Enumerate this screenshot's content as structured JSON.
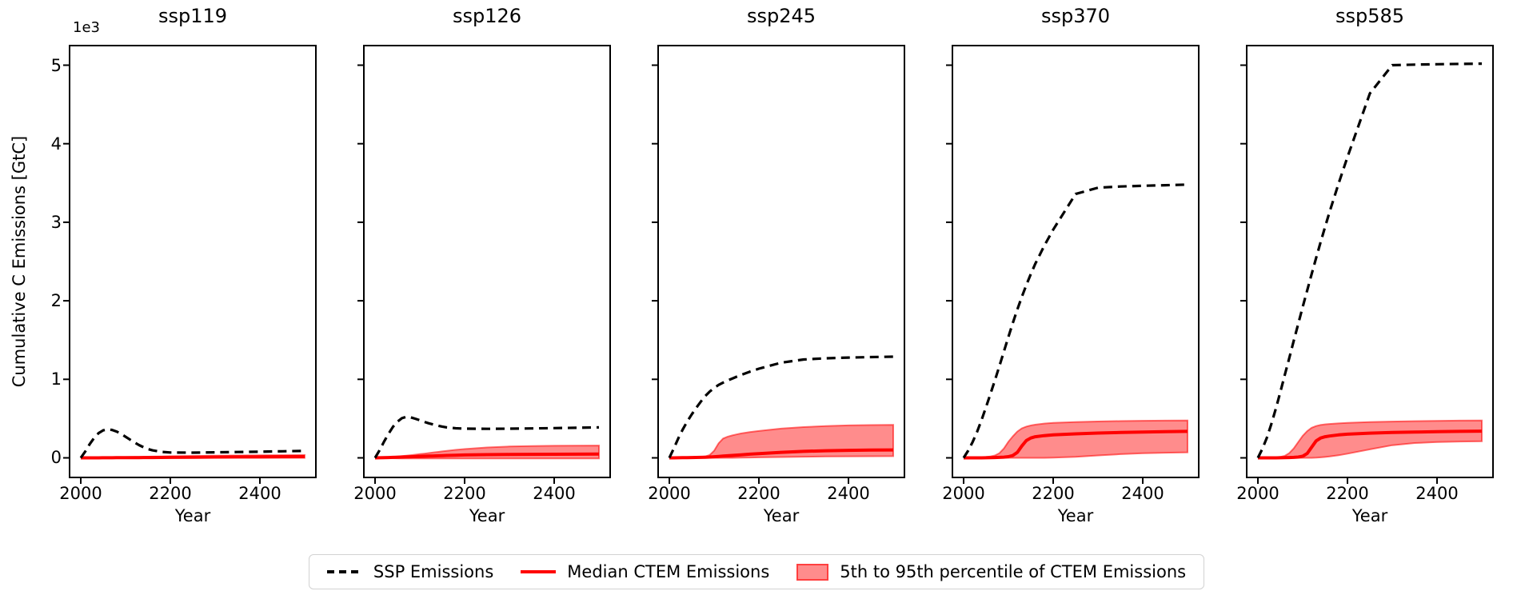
{
  "figure": {
    "ylabel": "Cumulative C Emissions [GtC]",
    "xlabel": "Year",
    "y_offset_label": "1e3"
  },
  "legend": {
    "items": [
      {
        "label": "SSP Emissions",
        "sample": "dashed-line"
      },
      {
        "label": "Median CTEM Emissions",
        "sample": "solid-line"
      },
      {
        "label": "5th to 95th percentile of CTEM Emissions",
        "sample": "patch"
      }
    ]
  },
  "chart_data": {
    "type": "line",
    "title": "",
    "xlabel": "Year",
    "ylabel": "Cumulative C Emissions [GtC]",
    "y_offset_label": "1e3",
    "xlim": [
      1975,
      2525
    ],
    "ylim": [
      -250,
      5250
    ],
    "xticks": [
      2000,
      2200,
      2400
    ],
    "yticks": {
      "values": [
        0,
        1000,
        2000,
        3000,
        4000,
        5000
      ],
      "labels": [
        "0",
        "1",
        "2",
        "3",
        "4",
        "5"
      ]
    },
    "grid": false,
    "legend_position": "bottom-center",
    "colors": {
      "ssp_line": "#000000",
      "median_line": "#ff0000",
      "band_fill": "rgba(255,0,0,0.45)",
      "band_edge": "rgba(255,0,0,0.55)",
      "legend_border": "#d2d2d2"
    },
    "series_meaning": {
      "ssp": "SSP Emissions (black dashed)",
      "median": "Median CTEM Emissions (red solid)",
      "p5_p95": "5th to 95th percentile of CTEM Emissions (red band)"
    },
    "x": [
      2000,
      2010,
      2020,
      2030,
      2040,
      2050,
      2060,
      2070,
      2080,
      2090,
      2100,
      2110,
      2120,
      2130,
      2140,
      2150,
      2160,
      2180,
      2200,
      2250,
      2300,
      2350,
      2400,
      2450,
      2500
    ],
    "subplots": [
      {
        "title": "ssp119",
        "ssp": [
          0,
          80,
          175,
          255,
          315,
          350,
          362,
          355,
          335,
          305,
          268,
          232,
          196,
          163,
          135,
          112,
          95,
          76,
          68,
          66,
          70,
          74,
          78,
          83,
          88
        ],
        "median": [
          0,
          0,
          0,
          0,
          0,
          1,
          1,
          1,
          2,
          2,
          2,
          3,
          3,
          3,
          4,
          4,
          4,
          5,
          6,
          8,
          10,
          12,
          13,
          15,
          16
        ],
        "p95": [
          0,
          1,
          2,
          3,
          4,
          5,
          6,
          7,
          8,
          9,
          10,
          11,
          12,
          13,
          14,
          15,
          16,
          18,
          20,
          24,
          27,
          30,
          32,
          34,
          35
        ],
        "p5": [
          0,
          0,
          0,
          0,
          0,
          0,
          0,
          0,
          0,
          0,
          0,
          0,
          0,
          0,
          0,
          0,
          0,
          0,
          0,
          0,
          0,
          0,
          0,
          0,
          0
        ]
      },
      {
        "title": "ssp126",
        "ssp": [
          0,
          95,
          205,
          305,
          395,
          460,
          505,
          522,
          515,
          498,
          478,
          458,
          440,
          424,
          410,
          398,
          388,
          376,
          371,
          369,
          371,
          374,
          378,
          383,
          388
        ],
        "median": [
          0,
          1,
          2,
          4,
          6,
          8,
          10,
          12,
          14,
          16,
          18,
          20,
          22,
          24,
          26,
          28,
          30,
          33,
          36,
          40,
          42,
          44,
          45,
          46,
          47
        ],
        "p95": [
          0,
          2,
          5,
          9,
          13,
          18,
          23,
          28,
          34,
          40,
          47,
          54,
          61,
          68,
          75,
          82,
          89,
          101,
          112,
          132,
          144,
          150,
          153,
          155,
          156
        ],
        "p5": [
          0,
          -2,
          -4,
          -5,
          -6,
          -7,
          -8,
          -8,
          -8,
          -8,
          -8,
          -8,
          -8,
          -8,
          -8,
          -8,
          -8,
          -8,
          -8,
          -8,
          -8,
          -8,
          -8,
          -8,
          -8
        ]
      },
      {
        "title": "ssp245",
        "ssp": [
          0,
          120,
          248,
          362,
          463,
          553,
          636,
          714,
          785,
          843,
          890,
          928,
          958,
          984,
          1008,
          1032,
          1055,
          1098,
          1135,
          1212,
          1252,
          1268,
          1277,
          1283,
          1288
        ],
        "median": [
          0,
          0,
          1,
          2,
          3,
          4,
          5,
          6,
          8,
          10,
          14,
          18,
          22,
          26,
          30,
          34,
          38,
          46,
          54,
          70,
          82,
          90,
          95,
          98,
          100
        ],
        "p95": [
          0,
          1,
          2,
          4,
          6,
          8,
          10,
          13,
          17,
          35,
          90,
          185,
          245,
          268,
          285,
          298,
          310,
          328,
          342,
          372,
          392,
          405,
          413,
          417,
          420
        ],
        "p5": [
          0,
          0,
          0,
          0,
          0,
          0,
          0,
          0,
          0,
          0,
          0,
          0,
          0,
          0,
          0,
          1,
          2,
          4,
          6,
          10,
          14,
          17,
          19,
          20,
          21
        ]
      },
      {
        "title": "ssp370",
        "ssp": [
          0,
          90,
          200,
          330,
          480,
          645,
          815,
          990,
          1170,
          1355,
          1540,
          1720,
          1890,
          2050,
          2200,
          2340,
          2470,
          2700,
          2905,
          3360,
          3440,
          3455,
          3465,
          3472,
          3480
        ],
        "median": [
          0,
          0,
          0,
          0,
          0,
          1,
          2,
          4,
          6,
          9,
          15,
          30,
          70,
          150,
          220,
          252,
          268,
          283,
          293,
          305,
          315,
          322,
          328,
          333,
          337
        ],
        "p95": [
          0,
          1,
          2,
          4,
          7,
          11,
          18,
          30,
          60,
          120,
          205,
          275,
          335,
          375,
          398,
          412,
          422,
          436,
          445,
          456,
          463,
          468,
          472,
          474,
          476
        ],
        "p5": [
          0,
          0,
          0,
          0,
          0,
          0,
          0,
          0,
          0,
          0,
          0,
          0,
          0,
          0,
          0,
          0,
          0,
          0,
          2,
          12,
          30,
          46,
          58,
          65,
          70
        ]
      },
      {
        "title": "ssp585",
        "ssp": [
          0,
          115,
          255,
          430,
          625,
          835,
          1055,
          1270,
          1490,
          1705,
          1920,
          2130,
          2340,
          2545,
          2745,
          2940,
          3130,
          3490,
          3830,
          4640,
          5000,
          5008,
          5013,
          5017,
          5020
        ],
        "median": [
          0,
          0,
          0,
          0,
          0,
          1,
          2,
          4,
          6,
          10,
          20,
          55,
          135,
          215,
          252,
          268,
          278,
          292,
          301,
          314,
          322,
          328,
          333,
          337,
          340
        ],
        "p95": [
          0,
          1,
          2,
          4,
          7,
          12,
          25,
          60,
          120,
          200,
          280,
          340,
          382,
          405,
          418,
          426,
          431,
          439,
          445,
          455,
          462,
          467,
          471,
          474,
          476
        ],
        "p5": [
          0,
          0,
          0,
          0,
          0,
          0,
          0,
          0,
          0,
          0,
          0,
          0,
          0,
          2,
          6,
          11,
          17,
          32,
          52,
          108,
          160,
          188,
          200,
          207,
          210
        ]
      }
    ]
  }
}
